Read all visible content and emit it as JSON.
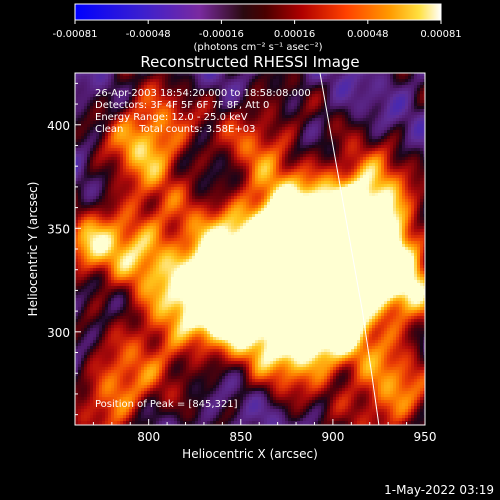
{
  "chart_data": {
    "type": "heatmap",
    "title": "Reconstructed RHESSI Image",
    "xlabel": "Heliocentric X (arcsec)",
    "ylabel": "Heliocentric Y (arcsec)",
    "xlim": [
      760,
      950
    ],
    "ylim": [
      255,
      425
    ],
    "x_ticks": [
      800,
      850,
      900,
      950
    ],
    "y_ticks": [
      300,
      350,
      400
    ],
    "colorbar": {
      "ticks": [
        "-0.00081",
        "-0.00048",
        "-0.00016",
        "0.00016",
        "0.00048",
        "0.00081"
      ],
      "range": [
        -0.00081,
        0.00081
      ],
      "unit_label": "(photons cm⁻² s⁻¹ asec⁻²)"
    },
    "info_lines": [
      "26-Apr-2003 18:54:20.000 to 18:58:08.000",
      "Detectors: 3F 4F 5F 6F 7F 8F, Att 0",
      "Energy Range: 12.0 - 25.0 keV",
      "Clean     Total counts: 3.58E+03"
    ],
    "peak_label": "Position of Peak = [845,321]",
    "peak": [
      845,
      321
    ],
    "limb_curve": [
      [
        893,
        425
      ],
      [
        898,
        400
      ],
      [
        904,
        370
      ],
      [
        910,
        340
      ],
      [
        916,
        310
      ],
      [
        921,
        280
      ],
      [
        925,
        255
      ]
    ],
    "grid": false
  },
  "footer": {
    "timestamp": "1-May-2022 03:19"
  }
}
